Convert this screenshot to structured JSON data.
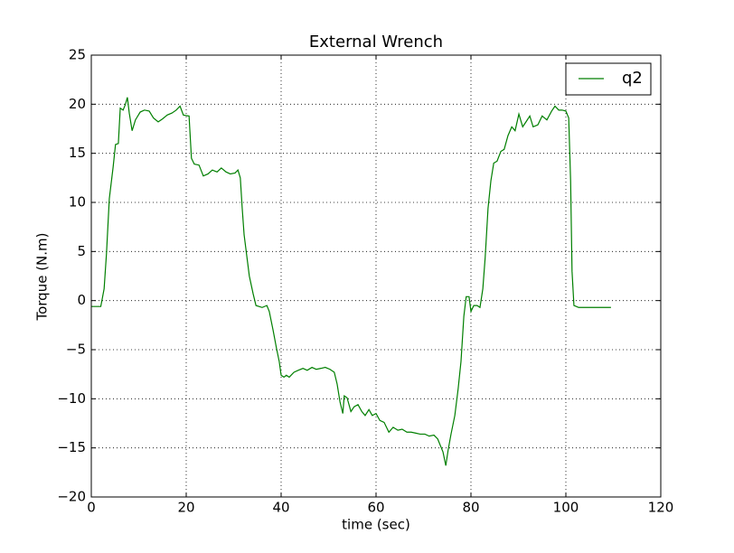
{
  "chart_data": {
    "type": "line",
    "title": "External Wrench",
    "xlabel": "time (sec)",
    "ylabel": "Torque (N.m)",
    "xlim": [
      0,
      120
    ],
    "xticks": [
      0,
      20,
      40,
      60,
      80,
      100,
      120
    ],
    "ylim": [
      -20,
      25
    ],
    "yticks": [
      {
        "value": -20,
        "label": "−20"
      },
      {
        "value": -15,
        "label": "−15"
      },
      {
        "value": -10,
        "label": "−10"
      },
      {
        "value": -5,
        "label": "−5"
      },
      0,
      5,
      10,
      15,
      20,
      25
    ],
    "grid": true,
    "legend": "upper right",
    "x": [
      0,
      2,
      2.7,
      3.2,
      3.8,
      4.6,
      5.1,
      5.7,
      6.1,
      6.7,
      7.2,
      7.6,
      8,
      8.6,
      9.3,
      10.3,
      11.2,
      12.2,
      13.1,
      14.1,
      15,
      16,
      17,
      17.9,
      18.7,
      19.4,
      20.6,
      21.1,
      21.7,
      22.7,
      23.6,
      24.6,
      25.5,
      26.5,
      27.4,
      28.4,
      29.3,
      30.3,
      30.9,
      31.4,
      31.8,
      32.2,
      32.8,
      33.3,
      34.1,
      34.7,
      36,
      37,
      37.5,
      38.3,
      39,
      39.6,
      40,
      40.6,
      41.1,
      41.7,
      42.7,
      43.6,
      44.6,
      45.5,
      46.5,
      47.4,
      48.4,
      49.3,
      50.3,
      51.2,
      51.8,
      52.4,
      53,
      53.3,
      53.9,
      54.7,
      55.4,
      56.2,
      57,
      57.7,
      58.5,
      59.2,
      60,
      60.8,
      61.7,
      62.7,
      63.6,
      64.6,
      65.5,
      66.5,
      67.4,
      68.4,
      69.3,
      70.3,
      71.2,
      72.2,
      73,
      73.5,
      74.1,
      74.7,
      75.2,
      75.8,
      76.6,
      77.3,
      77.9,
      78.5,
      79,
      79.6,
      80,
      80.6,
      81.3,
      81.9,
      82.5,
      83,
      83.6,
      84.2,
      84.8,
      85.5,
      86.3,
      87,
      87.8,
      88.6,
      89.3,
      90.1,
      90.9,
      91.6,
      92.4,
      93.1,
      94.1,
      95,
      96,
      97,
      97.7,
      98.5,
      99.2,
      100,
      100.6,
      101,
      101.3,
      101.7,
      102.7,
      109.5
    ],
    "series": [
      {
        "name": "q2",
        "color": "#007f00",
        "values": [
          -0.6,
          -0.6,
          1.2,
          4.8,
          10.4,
          13.6,
          15.9,
          16,
          19.6,
          19.4,
          20,
          20.7,
          19.1,
          17.3,
          18.4,
          19.2,
          19.4,
          19.3,
          18.6,
          18.2,
          18.5,
          18.9,
          19.1,
          19.4,
          19.8,
          18.9,
          18.8,
          14.5,
          13.9,
          13.8,
          12.7,
          12.9,
          13.3,
          13.1,
          13.5,
          13.1,
          12.9,
          13,
          13.3,
          12.5,
          9.4,
          6.7,
          4.4,
          2.5,
          0.7,
          -0.5,
          -0.7,
          -0.5,
          -1.1,
          -3,
          -4.8,
          -6.2,
          -7.6,
          -7.8,
          -7.6,
          -7.8,
          -7.3,
          -7.1,
          -6.9,
          -7.1,
          -6.8,
          -7,
          -6.9,
          -6.8,
          -7,
          -7.3,
          -8.5,
          -10.3,
          -11.5,
          -9.7,
          -9.9,
          -11.3,
          -10.8,
          -10.6,
          -11.3,
          -11.7,
          -11.1,
          -11.7,
          -11.5,
          -12.2,
          -12.4,
          -13.4,
          -12.9,
          -13.2,
          -13.1,
          -13.4,
          -13.4,
          -13.5,
          -13.6,
          -13.6,
          -13.8,
          -13.7,
          -14.1,
          -14.7,
          -15.4,
          -16.8,
          -15.2,
          -13.6,
          -11.7,
          -9,
          -6.2,
          -1.6,
          0.4,
          0.4,
          -1.1,
          -0.5,
          -0.5,
          -0.7,
          1.2,
          4.4,
          9.4,
          12.2,
          14,
          14.2,
          15.2,
          15.4,
          16.8,
          17.7,
          17.3,
          19,
          17.7,
          18.2,
          18.8,
          17.7,
          17.9,
          18.8,
          18.4,
          19.3,
          19.8,
          19.4,
          19.4,
          19.3,
          18.6,
          12.2,
          3,
          -0.5,
          -0.7,
          -0.7
        ]
      }
    ]
  }
}
